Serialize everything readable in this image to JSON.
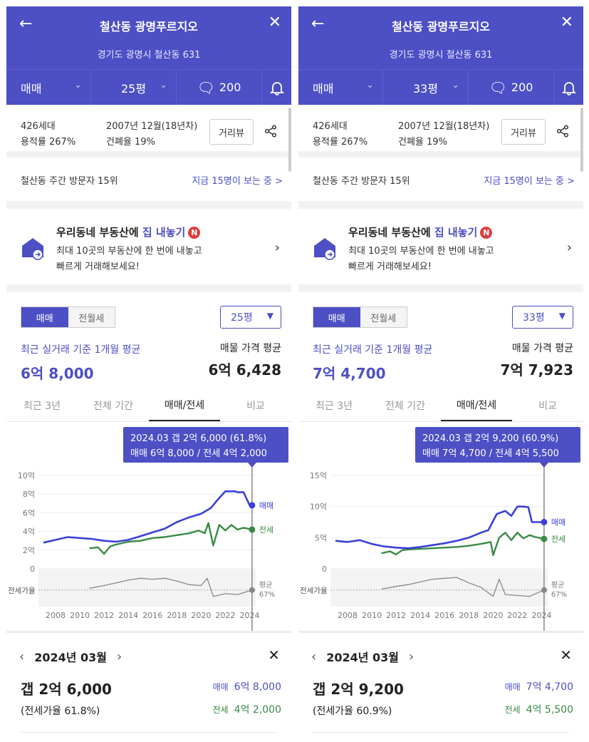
{
  "colors": {
    "brand": "#4d4fc4",
    "sale": "#3b3fd9",
    "jeonse": "#3a8a45",
    "ratio": "#888888"
  },
  "screens": [
    {
      "header": {
        "title": "철산동 광명푸르지오",
        "address": "경기도 광명시 철산동 631",
        "trade_type": "매매",
        "size": "25평",
        "comment_count": "200"
      },
      "info": {
        "households": "426세대",
        "far": "용적률 267%",
        "built": "2007년 12월(18년차)",
        "bcr": "건폐율 19%",
        "road_view": "거리뷰"
      },
      "visitors": {
        "rank": "철산동 주간 방문자 15위",
        "watching": "지금 15명이 보는 중 >"
      },
      "promo": {
        "title_pre": "우리동네 부동산에 ",
        "title_hl": "집 내놓기",
        "badge": "N",
        "line1": "최대 10곳의 부동산에 한 번에 내놓고",
        "line2": "빠르게 거래해보세요!"
      },
      "price": {
        "seg_sale": "매매",
        "seg_rent": "전월세",
        "size": "25평",
        "recent_label": "최근 실거래 기준 1개월 평균",
        "recent_value": "6억 8,000",
        "listing_label": "매물 가격 평균",
        "listing_value": "6억 6,428"
      },
      "tabs": [
        "최근 3년",
        "전체 기간",
        "매매/전세",
        "비교"
      ],
      "tooltip": {
        "line1": "2024.03  갭 2억 6,000 (61.8%)",
        "line2": "매매 6억 8,000 / 전세 4억 2,000"
      },
      "chart_data": {
        "type": "line",
        "title": "",
        "y_ticks": [
          "10억",
          "8억",
          "6억",
          "4억",
          "2억",
          "0"
        ],
        "ylim": [
          0,
          10
        ],
        "x_ticks": [
          "2008",
          "2010",
          "2012",
          "2014",
          "2016",
          "2018",
          "2020",
          "2022",
          "2024"
        ],
        "xlim": [
          2007,
          2024.5
        ],
        "series": [
          {
            "name": "매매",
            "unit": "억",
            "x": [
              2007.0,
              2008.0,
              2009.0,
              2010.0,
              2011.0,
              2012.0,
              2013.0,
              2014.0,
              2015.0,
              2016.0,
              2017.0,
              2018.0,
              2019.0,
              2020.0,
              2020.8,
              2021.3,
              2022.0,
              2022.8,
              2023.0,
              2023.5,
              2024.0,
              2024.2
            ],
            "y": [
              2.8,
              3.1,
              3.4,
              3.3,
              3.2,
              3.0,
              2.9,
              3.1,
              3.5,
              3.9,
              4.3,
              5.0,
              5.5,
              5.9,
              6.5,
              7.3,
              8.3,
              8.3,
              8.2,
              8.2,
              6.8,
              6.8
            ]
          },
          {
            "name": "전세",
            "unit": "억",
            "x": [
              2010.8,
              2011.5,
              2012.0,
              2012.5,
              2013.0,
              2014.0,
              2015.0,
              2016.0,
              2017.0,
              2018.0,
              2019.0,
              2019.8,
              2020.3,
              2020.6,
              2021.0,
              2021.5,
              2022.0,
              2022.5,
              2023.0,
              2023.5,
              2024.2
            ],
            "y": [
              2.2,
              2.3,
              1.6,
              2.4,
              2.6,
              2.9,
              3.0,
              3.3,
              3.4,
              3.6,
              3.8,
              4.1,
              3.8,
              4.9,
              2.5,
              4.7,
              4.1,
              4.7,
              4.2,
              4.4,
              4.2
            ]
          },
          {
            "name": "전세가율",
            "unit": "%",
            "x": [
              2010.8,
              2012.0,
              2013.0,
              2014.0,
              2015.0,
              2016.0,
              2017.0,
              2018.0,
              2019.0,
              2020.0,
              2020.5,
              2021.0,
              2022.0,
              2023.0,
              2024.2
            ],
            "y": [
              69,
              72,
              75,
              78,
              80,
              79,
              80,
              77,
              73,
              72,
              80,
              60,
              63,
              62,
              67
            ]
          }
        ],
        "end_labels": {
          "sale": "매매",
          "jeonse": "전세",
          "ratio_top": "평균",
          "ratio_bottom": "67%",
          "ratio_axis": "전세가율"
        }
      },
      "detail": {
        "month": "2024년 03월",
        "gap": "갭 2억 6,000",
        "rate": "(전세가율 61.8%)",
        "sale_label": "매매",
        "sale_value": "6억 8,000",
        "jeonse_label": "전세",
        "jeonse_value": "4억 2,000"
      }
    },
    {
      "header": {
        "title": "철산동 광명푸르지오",
        "address": "경기도 광명시 철산동 631",
        "trade_type": "매매",
        "size": "33평",
        "comment_count": "200"
      },
      "info": {
        "households": "426세대",
        "far": "용적률 267%",
        "built": "2007년 12월(18년차)",
        "bcr": "건폐율 19%",
        "road_view": "거리뷰"
      },
      "visitors": {
        "rank": "철산동 주간 방문자 15위",
        "watching": "지금 15명이 보는 중 >"
      },
      "promo": {
        "title_pre": "우리동네 부동산에 ",
        "title_hl": "집 내놓기",
        "badge": "N",
        "line1": "최대 10곳의 부동산에 한 번에 내놓고",
        "line2": "빠르게 거래해보세요!"
      },
      "price": {
        "seg_sale": "매매",
        "seg_rent": "전월세",
        "size": "33평",
        "recent_label": "최근 실거래 기준 1개월 평균",
        "recent_value": "7억 4,700",
        "listing_label": "매물 가격 평균",
        "listing_value": "7억 7,923"
      },
      "tabs": [
        "최근 3년",
        "전체 기간",
        "매매/전세",
        "비교"
      ],
      "tooltip": {
        "line1": "2024.03  갭 2억 9,200 (60.9%)",
        "line2": "매매 7억 4,700 / 전세 4억 5,500"
      },
      "chart_data": {
        "type": "line",
        "title": "",
        "y_ticks": [
          "15억",
          "10억",
          "5억",
          "0"
        ],
        "ylim": [
          0,
          15
        ],
        "x_ticks": [
          "2008",
          "2010",
          "2012",
          "2014",
          "2016",
          "2018",
          "2020",
          "2022",
          "2024"
        ],
        "xlim": [
          2007,
          2024.5
        ],
        "series": [
          {
            "name": "매매",
            "unit": "억",
            "x": [
              2007.0,
              2008.0,
              2009.0,
              2010.0,
              2011.0,
              2012.0,
              2013.0,
              2014.0,
              2015.0,
              2016.0,
              2017.0,
              2018.0,
              2019.0,
              2019.6,
              2020.3,
              2021.0,
              2021.5,
              2022.0,
              2022.5,
              2022.9,
              2023.2,
              2024.2
            ],
            "y": [
              4.5,
              4.3,
              4.6,
              4.0,
              3.6,
              3.4,
              3.3,
              3.5,
              3.8,
              4.1,
              4.5,
              5.0,
              5.8,
              6.2,
              8.8,
              9.3,
              8.5,
              10.0,
              10.0,
              9.9,
              7.5,
              7.5
            ]
          },
          {
            "name": "전세",
            "unit": "억",
            "x": [
              2010.8,
              2011.5,
              2012.0,
              2012.5,
              2013.0,
              2014.0,
              2015.0,
              2016.0,
              2017.0,
              2018.0,
              2019.0,
              2019.8,
              2020.0,
              2020.5,
              2021.0,
              2021.5,
              2022.0,
              2022.5,
              2023.0,
              2023.5,
              2024.2
            ],
            "y": [
              2.5,
              2.8,
              2.3,
              3.0,
              3.1,
              3.2,
              3.3,
              3.4,
              3.5,
              3.7,
              4.0,
              4.3,
              2.2,
              5.0,
              5.8,
              4.6,
              5.8,
              4.9,
              5.4,
              5.1,
              4.8
            ]
          },
          {
            "name": "전세가율",
            "unit": "%",
            "x": [
              2010.8,
              2012.0,
              2013.0,
              2014.0,
              2015.0,
              2016.0,
              2017.0,
              2018.0,
              2019.0,
              2020.0,
              2020.5,
              2021.0,
              2022.0,
              2023.0,
              2024.2
            ],
            "y": [
              68,
              71,
              73,
              76,
              79,
              80,
              81,
              75,
              70,
              60,
              79,
              62,
              61,
              60,
              67
            ]
          }
        ],
        "end_labels": {
          "sale": "매매",
          "jeonse": "전세",
          "ratio_top": "평균",
          "ratio_bottom": "67%",
          "ratio_axis": "전세가율"
        }
      },
      "detail": {
        "month": "2024년 03월",
        "gap": "갭 2억 9,200",
        "rate": "(전세가율 60.9%)",
        "sale_label": "매매",
        "sale_value": "7억 4,700",
        "jeonse_label": "전세",
        "jeonse_value": "4억 5,500"
      }
    }
  ]
}
